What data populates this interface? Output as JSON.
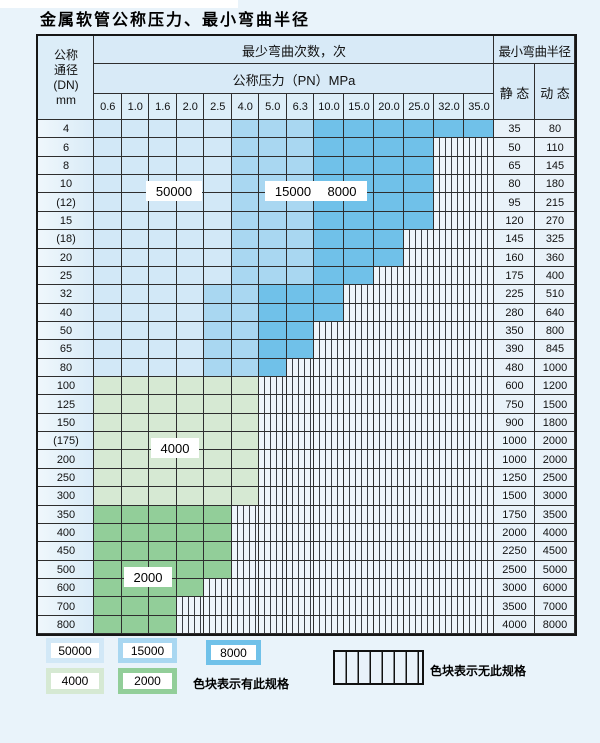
{
  "title": "金属软管公称压力、最小弯曲半径",
  "palette": {
    "blue_light": "#d2e8f7",
    "blue_mid": "#a9d7f1",
    "blue_dark": "#70c1e9",
    "green_light": "#d6e9d3",
    "green_dark": "#92ce99"
  },
  "table": {
    "dn_header": [
      "公称",
      "通径",
      "(DN)",
      "mm"
    ],
    "bend_times_header": "最少弯曲次数，次",
    "pressure_header": "公称压力（PN）MPa",
    "radius_header": "最小弯曲半径",
    "static_label": "静 态",
    "dynamic_label": "动 态",
    "pressures": [
      "0.6",
      "1.0",
      "1.6",
      "2.0",
      "2.5",
      "4.0",
      "5.0",
      "6.3",
      "10.0",
      "15.0",
      "20.0",
      "25.0",
      "32.0",
      "35.0"
    ],
    "rows": [
      {
        "dn": "4",
        "zones": [
          4,
          7,
          13
        ],
        "pal": "blue",
        "st": "35",
        "dy": "80"
      },
      {
        "dn": "6",
        "zones": [
          4,
          7,
          11
        ],
        "pal": "blue",
        "st": "50",
        "dy": "110"
      },
      {
        "dn": "8",
        "zones": [
          4,
          7,
          11
        ],
        "pal": "blue",
        "st": "65",
        "dy": "145"
      },
      {
        "dn": "10",
        "zones": [
          4,
          7,
          11
        ],
        "pal": "blue",
        "st": "80",
        "dy": "180"
      },
      {
        "dn": "(12)",
        "zones": [
          4,
          7,
          11
        ],
        "pal": "blue",
        "st": "95",
        "dy": "215"
      },
      {
        "dn": "15",
        "zones": [
          4,
          7,
          11
        ],
        "pal": "blue",
        "st": "120",
        "dy": "270"
      },
      {
        "dn": "(18)",
        "zones": [
          4,
          7,
          10
        ],
        "pal": "blue",
        "st": "145",
        "dy": "325"
      },
      {
        "dn": "20",
        "zones": [
          4,
          7,
          10
        ],
        "pal": "blue",
        "st": "160",
        "dy": "360"
      },
      {
        "dn": "25",
        "zones": [
          4,
          7,
          9
        ],
        "pal": "blue",
        "st": "175",
        "dy": "400"
      },
      {
        "dn": "32",
        "zones": [
          3,
          5,
          8
        ],
        "pal": "blue",
        "st": "225",
        "dy": "510"
      },
      {
        "dn": "40",
        "zones": [
          3,
          5,
          8
        ],
        "pal": "blue",
        "st": "280",
        "dy": "640"
      },
      {
        "dn": "50",
        "zones": [
          3,
          5,
          7
        ],
        "pal": "blue",
        "st": "350",
        "dy": "800"
      },
      {
        "dn": "65",
        "zones": [
          3,
          5,
          7
        ],
        "pal": "blue",
        "st": "390",
        "dy": "845"
      },
      {
        "dn": "80",
        "zones": [
          3,
          5,
          6
        ],
        "pal": "blue",
        "st": "480",
        "dy": "1000"
      },
      {
        "dn": "100",
        "zones": [
          5,
          5,
          5
        ],
        "pal": "green-light",
        "st": "600",
        "dy": "1200"
      },
      {
        "dn": "125",
        "zones": [
          5,
          5,
          5
        ],
        "pal": "green-light",
        "st": "750",
        "dy": "1500"
      },
      {
        "dn": "150",
        "zones": [
          5,
          5,
          5
        ],
        "pal": "green-light",
        "st": "900",
        "dy": "1800"
      },
      {
        "dn": "(175)",
        "zones": [
          5,
          5,
          5
        ],
        "pal": "green-light",
        "st": "1000",
        "dy": "2000"
      },
      {
        "dn": "200",
        "zones": [
          5,
          5,
          5
        ],
        "pal": "green-light",
        "st": "1000",
        "dy": "2000"
      },
      {
        "dn": "250",
        "zones": [
          5,
          5,
          5
        ],
        "pal": "green-light",
        "st": "1250",
        "dy": "2500"
      },
      {
        "dn": "300",
        "zones": [
          5,
          5,
          5
        ],
        "pal": "green-light",
        "st": "1500",
        "dy": "3000"
      },
      {
        "dn": "350",
        "zones": [
          4,
          4,
          4
        ],
        "pal": "green-dark",
        "st": "1750",
        "dy": "3500"
      },
      {
        "dn": "400",
        "zones": [
          4,
          4,
          4
        ],
        "pal": "green-dark",
        "st": "2000",
        "dy": "4000"
      },
      {
        "dn": "450",
        "zones": [
          4,
          4,
          4
        ],
        "pal": "green-dark",
        "st": "2250",
        "dy": "4500"
      },
      {
        "dn": "500",
        "zones": [
          4,
          4,
          4
        ],
        "pal": "green-dark",
        "st": "2500",
        "dy": "5000"
      },
      {
        "dn": "600",
        "zones": [
          3,
          3,
          3
        ],
        "pal": "green-dark",
        "st": "3000",
        "dy": "6000"
      },
      {
        "dn": "700",
        "zones": [
          2,
          2,
          2
        ],
        "pal": "green-dark",
        "st": "3500",
        "dy": "7000"
      },
      {
        "dn": "800",
        "zones": [
          2,
          2,
          2
        ],
        "pal": "green-dark",
        "st": "4000",
        "dy": "8000"
      }
    ]
  },
  "overlays": [
    {
      "text": "50000"
    },
    {
      "text": "15000"
    },
    {
      "text": "8000"
    },
    {
      "text": "4000"
    },
    {
      "text": "2000"
    }
  ],
  "legend": {
    "items": [
      {
        "label": "50000",
        "color_key": "blue_light"
      },
      {
        "label": "15000",
        "color_key": "blue_mid"
      },
      {
        "label": "8000",
        "color_key": "blue_dark"
      },
      {
        "label": "4000",
        "color_key": "green_light"
      },
      {
        "label": "2000",
        "color_key": "green_dark"
      }
    ],
    "has_spec_text": "色块表示有此规格",
    "no_spec_text": "色块表示无此规格"
  }
}
